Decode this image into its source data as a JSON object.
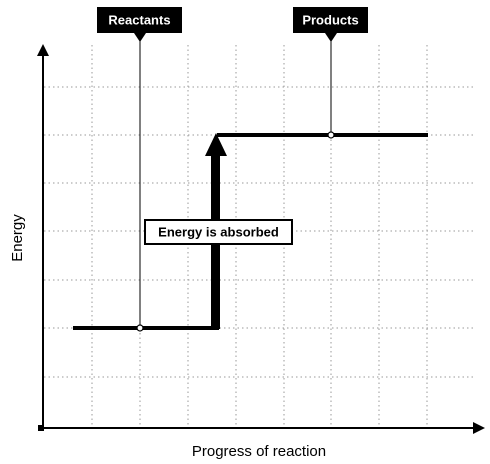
{
  "labels": {
    "reactants": "Reactants",
    "products": "Products",
    "energy_change": "Energy is absorbed"
  },
  "axes": {
    "x_label": "Progress of reaction",
    "y_label": "Energy"
  },
  "colors": {
    "line": "#000000",
    "tag_background": "#000000",
    "tag_text": "#ffffff",
    "grid": "#9a9a9a"
  }
}
